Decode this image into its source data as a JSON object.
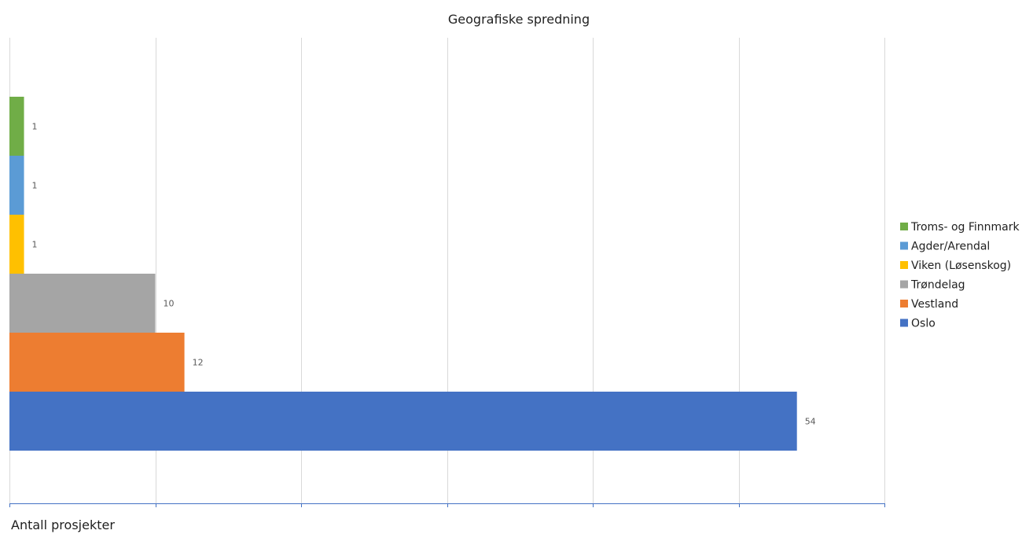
{
  "chart_data": {
    "type": "bar",
    "orientation": "horizontal",
    "title": "Geografiske spredning",
    "xlabel": "Antall prosjekter",
    "ylabel": "",
    "xlim": [
      0,
      60
    ],
    "grid": true,
    "legend_position": "right",
    "categories": [
      "Oslo",
      "Vestland",
      "Trøndelag",
      "Viken (Løsenskog)",
      "Agder/Arendal",
      "Troms- og Finnmark"
    ],
    "values": [
      54,
      12,
      10,
      1,
      1,
      1
    ],
    "colors": [
      "#4472c4",
      "#ed7d31",
      "#a5a5a5",
      "#ffc000",
      "#5b9bd5",
      "#70ad47"
    ],
    "legend_order": [
      "Troms- og Finnmark",
      "Agder/Arendal",
      "Viken (Løsenskog)",
      "Trøndelag",
      "Vestland",
      "Oslo"
    ]
  }
}
